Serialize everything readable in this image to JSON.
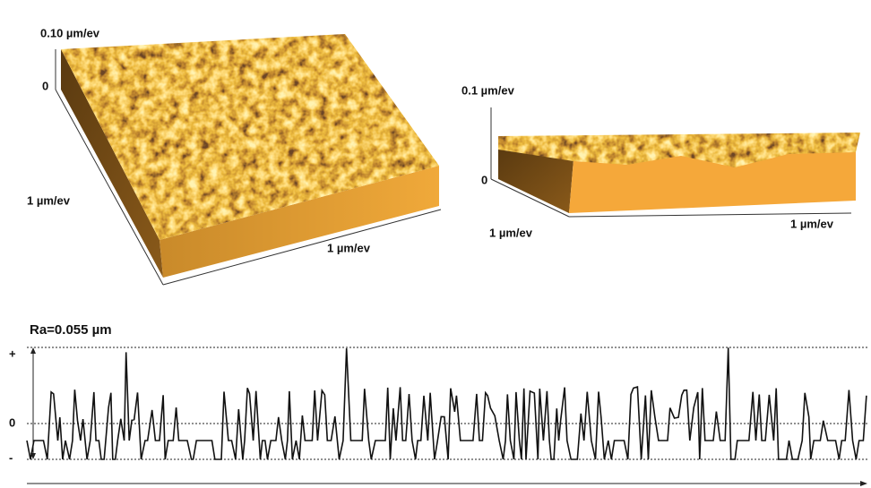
{
  "surface_top": {
    "z_label": "0.10 µm/ev",
    "z_zero": "0",
    "y_label": "1 µm/ev",
    "x_label": "1 µm/ev"
  },
  "surface_side": {
    "z_label": "0.1 µm/ev",
    "z_zero": "0",
    "y_label": "1 µm/ev",
    "x_label": "1 µm/ev"
  },
  "profile": {
    "title": "Ra=0.055 µm",
    "plus": "+",
    "zero": "0",
    "minus": "-"
  }
}
